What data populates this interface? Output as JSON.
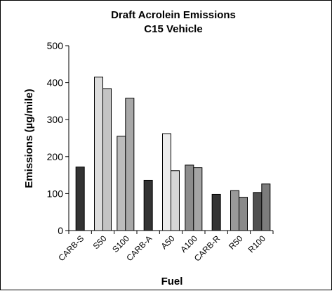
{
  "chart_data": {
    "type": "bar",
    "title": "Draft Acrolein Emissions",
    "subtitle": "C15 Vehicle",
    "xlabel": "Fuel",
    "ylabel": "Emissions (µg/mile)",
    "ylim": [
      0,
      500
    ],
    "yticks": [
      "0",
      "100",
      "200",
      "300",
      "400",
      "500"
    ],
    "grid": false,
    "legend": "none",
    "categories": [
      "CARB-S",
      "S50",
      "S100",
      "CARB-A",
      "A50",
      "A100",
      "CARB-R",
      "R50",
      "R100"
    ],
    "bars": [
      {
        "category": "CARB-S",
        "values": [
          172
        ],
        "colors": [
          "#333333"
        ]
      },
      {
        "category": "S50",
        "values": [
          415,
          384
        ],
        "colors": [
          "#dcdcdc",
          "#c4c4c4"
        ]
      },
      {
        "category": "S100",
        "values": [
          255,
          358
        ],
        "colors": [
          "#bcbcbc",
          "#a8a8a8"
        ]
      },
      {
        "category": "CARB-A",
        "values": [
          136
        ],
        "colors": [
          "#333333"
        ]
      },
      {
        "category": "A50",
        "values": [
          262,
          162
        ],
        "colors": [
          "#ececec",
          "#d6d6d6"
        ]
      },
      {
        "category": "A100",
        "values": [
          177,
          170
        ],
        "colors": [
          "#8c8c8c",
          "#a4a4a4"
        ]
      },
      {
        "category": "CARB-R",
        "values": [
          98
        ],
        "colors": [
          "#333333"
        ]
      },
      {
        "category": "R50",
        "values": [
          108,
          90
        ],
        "colors": [
          "#9a9a9a",
          "#8a8a8a"
        ]
      },
      {
        "category": "R100",
        "values": [
          103,
          126
        ],
        "colors": [
          "#505050",
          "#7c7c7c"
        ]
      }
    ]
  }
}
